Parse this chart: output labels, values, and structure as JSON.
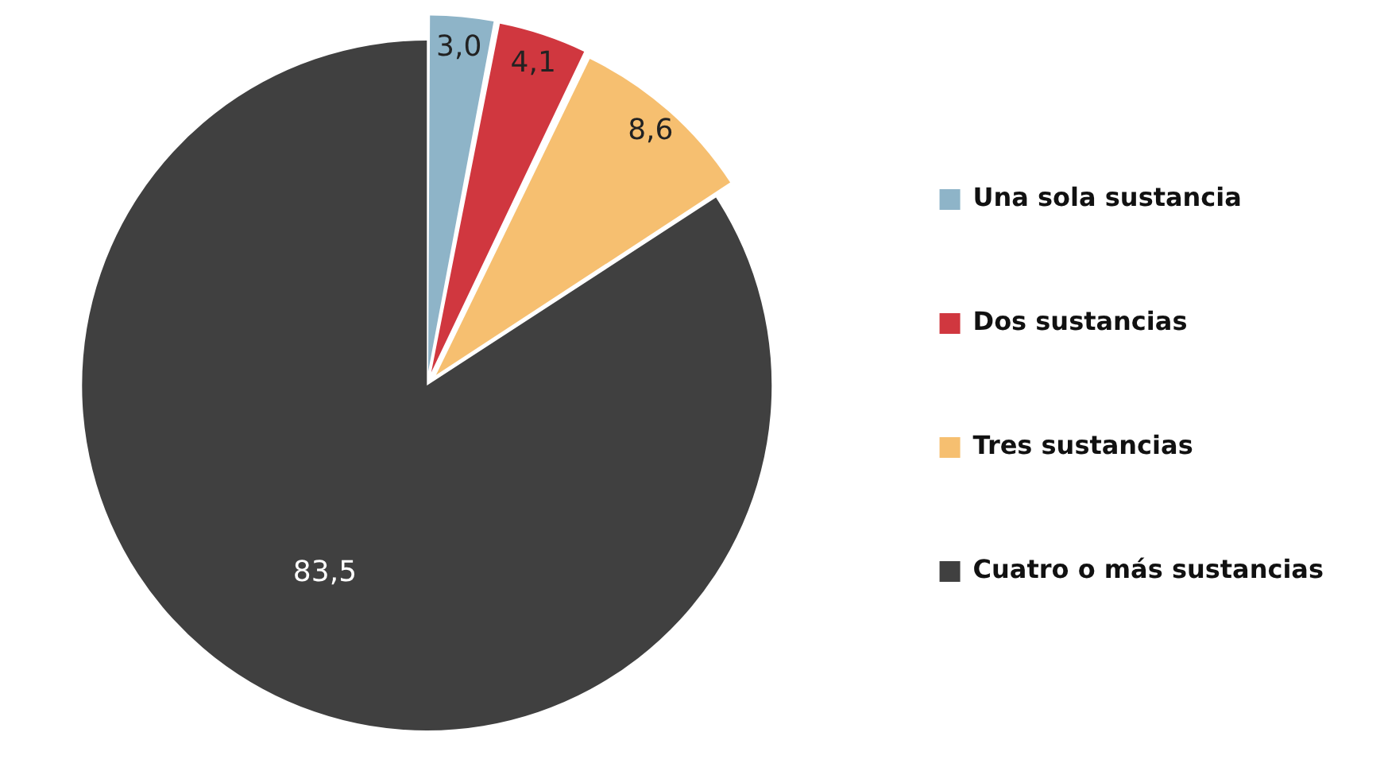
{
  "chart_data": {
    "type": "pie",
    "categories": [
      "Una sola sustancia",
      "Dos sustancias",
      "Tres sustancias",
      "Cuatro o más sustancias"
    ],
    "values": [
      3.0,
      4.1,
      8.6,
      83.5
    ],
    "colors": [
      "#8eb4c8",
      "#d0373f",
      "#f6bf70",
      "#404040"
    ],
    "value_labels": [
      "3,0",
      "4,1",
      "8,6",
      "83,5"
    ],
    "legend": "right"
  }
}
